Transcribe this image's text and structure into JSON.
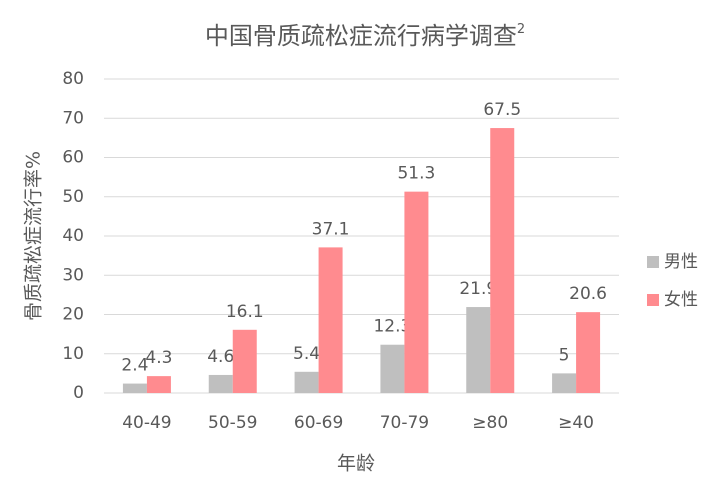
{
  "chart_data": {
    "type": "bar",
    "title": "中国骨质疏松症流行病学调查",
    "title_superscript": "2",
    "x_label": "年龄",
    "y_label": "骨质疏松症流行率%",
    "categories": [
      "40-49",
      "50-59",
      "60-69",
      "70-79",
      "≥80",
      "≥40"
    ],
    "series": [
      {
        "name": "男性",
        "color": "#bfbfbf",
        "values": [
          2.4,
          4.6,
          5.4,
          12.3,
          21.9,
          5
        ]
      },
      {
        "name": "女性",
        "color": "#ff8b8f",
        "values": [
          4.3,
          16.1,
          37.1,
          51.3,
          67.5,
          20.6
        ]
      }
    ],
    "ylim": [
      0,
      80
    ],
    "yticks": [
      0,
      10,
      20,
      30,
      40,
      50,
      60,
      70,
      80
    ],
    "grid": true,
    "legend": "right"
  }
}
